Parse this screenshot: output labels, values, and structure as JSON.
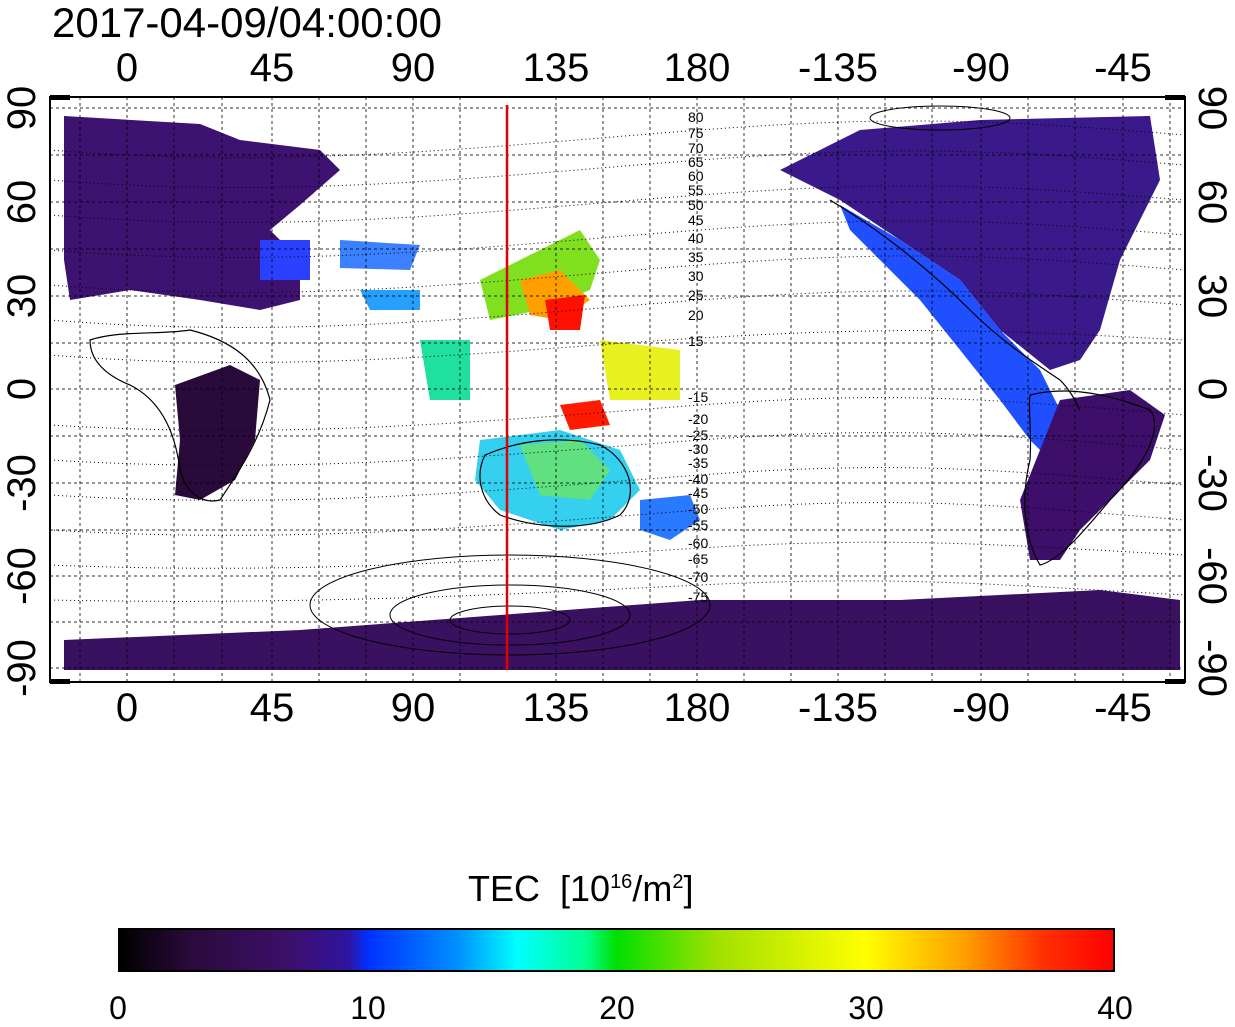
{
  "title": "2017-04-09/04:00:00",
  "axes": {
    "top_ticks": [
      "0",
      "45",
      "90",
      "135",
      "180",
      "-135",
      "-90",
      "-45"
    ],
    "bottom_ticks": [
      "0",
      "45",
      "90",
      "135",
      "180",
      "-135",
      "-90",
      "-45"
    ],
    "left_ticks": [
      "90",
      "60",
      "30",
      "0",
      "-30",
      "-60",
      "-90"
    ],
    "right_ticks": [
      "90",
      "60",
      "30",
      "0",
      "-30",
      "-60",
      "-90"
    ],
    "longitude_values": [
      0,
      45,
      90,
      135,
      180,
      -135,
      -90,
      -45
    ],
    "latitude_values": [
      90,
      60,
      30,
      0,
      -30,
      -60,
      -90
    ],
    "lon_range": [
      -20,
      330
    ],
    "lat_range": [
      -95,
      95
    ],
    "grid": true,
    "grid_lon_step": 15,
    "grid_lat_step": 15
  },
  "contour_labels": {
    "north": [
      "80",
      "75",
      "70",
      "65",
      "60",
      "55",
      "50",
      "45",
      "40",
      "35",
      "30",
      "25",
      "20",
      "15"
    ],
    "south": [
      "-15",
      "-20",
      "-25",
      "-30",
      "-35",
      "-40",
      "-45",
      "-50",
      "-55",
      "-60",
      "-65",
      "-70",
      "-75"
    ]
  },
  "marker_line": {
    "longitude": 120,
    "color": "#e00000"
  },
  "colorbar": {
    "title_main": "TEC",
    "title_unit_open": "[10",
    "title_unit_exp": "16",
    "title_unit_mid": "/m",
    "title_unit_exp2": "2",
    "title_unit_close": "]",
    "ticks": [
      "0",
      "10",
      "20",
      "30",
      "40"
    ],
    "range": [
      0,
      40
    ]
  },
  "colors": {
    "low": "#000000",
    "mid_low": "#3d0f6b",
    "mid": "#00ffff",
    "high": "#ffff00",
    "max": "#ff0000"
  }
}
